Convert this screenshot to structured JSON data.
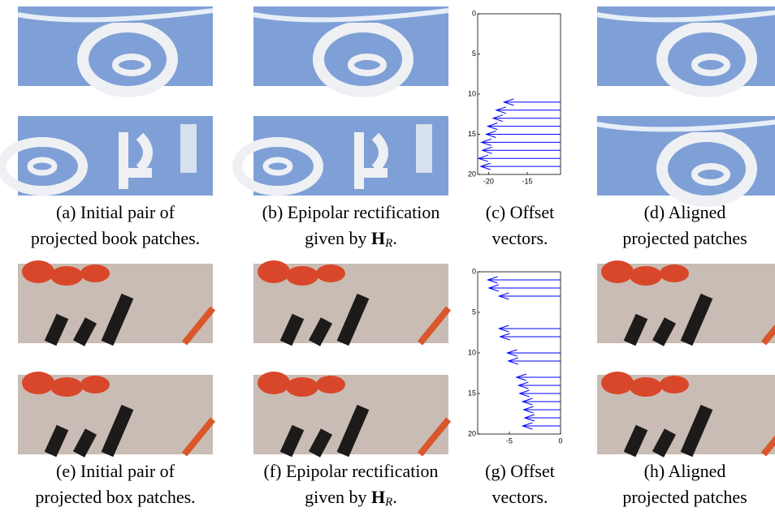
{
  "captions": [
    {
      "line1": "(a) Initial pair of",
      "line2": "projected book patches."
    },
    {
      "line1": "(b) Epipolar rectification",
      "line2": "given by ",
      "symbol": "H",
      "subscript": "R",
      "end": "."
    },
    {
      "line1": "(c) Offset",
      "line2": "vectors."
    },
    {
      "line1": "(d) Aligned",
      "line2": "projected patches"
    },
    {
      "line1": "(e) Initial pair of",
      "line2": "projected box patches."
    },
    {
      "line1": "(f) Epipolar rectification",
      "line2": "given by ",
      "symbol": "H",
      "subscript": "R",
      "end": "."
    },
    {
      "line1": "(g) Offset",
      "line2": "vectors."
    },
    {
      "line1": "(h) Aligned",
      "line2": "projected patches"
    }
  ],
  "chart_data": [
    {
      "type": "quiver",
      "color": "#0000ff",
      "y": [
        11,
        12,
        13,
        14,
        15,
        16,
        17,
        18,
        19
      ],
      "x": [
        -18.0,
        -19.0,
        -19.4,
        -20.1,
        -20.3,
        -20.9,
        -20.8,
        -21.3,
        -21.0
      ],
      "xlim": [
        -21.4,
        -10.7
      ],
      "ylim": [
        0,
        20
      ],
      "y_inverted": true,
      "xticks": [
        -20,
        -15
      ],
      "yticks": [
        0,
        5,
        10,
        15,
        20
      ]
    },
    {
      "type": "quiver",
      "color": "#0000ff",
      "y": [
        1,
        2,
        3,
        7,
        8,
        10,
        11,
        13,
        14,
        15,
        16,
        17,
        18,
        19
      ],
      "x": [
        -7.1,
        -7.0,
        -6.0,
        -6.0,
        -5.9,
        -5.2,
        -5.1,
        -4.3,
        -4.1,
        -4.0,
        -3.7,
        -3.6,
        -3.5,
        -3.7
      ],
      "xlim": [
        -8.1,
        0
      ],
      "ylim": [
        0,
        20
      ],
      "y_inverted": true,
      "xticks": [
        -5,
        0
      ],
      "yticks": [
        0,
        5,
        10,
        15,
        20
      ]
    }
  ]
}
